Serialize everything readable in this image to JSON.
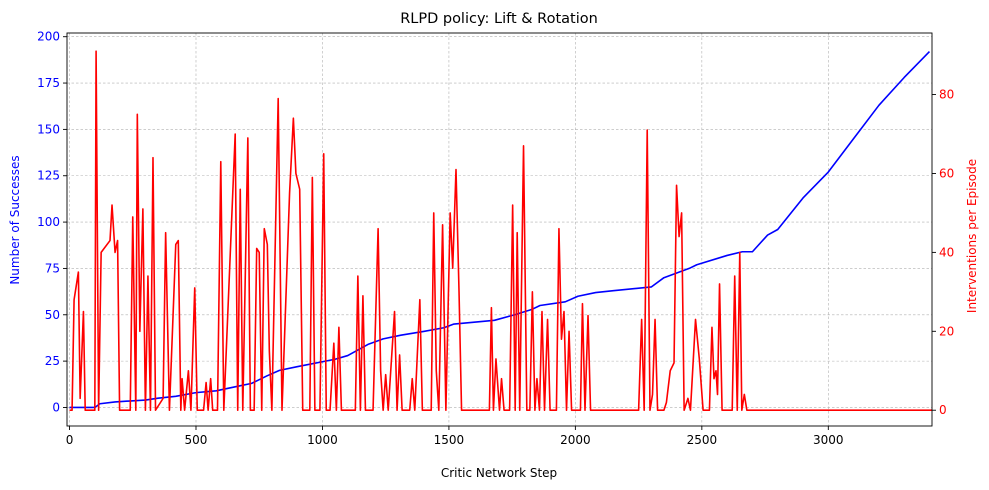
{
  "chart_data": {
    "type": "line",
    "title": "RLPD policy: Lift & Rotation",
    "xlabel": "Critic Network Step",
    "ylabel_left": "Number of Successes",
    "ylabel_right": "Interventions per Episode",
    "xlim": [
      -10,
      3410
    ],
    "ylim_left": [
      -10,
      202
    ],
    "ylim_right": [
      -4,
      95.6
    ],
    "x_ticks": [
      0,
      500,
      1000,
      1500,
      2000,
      2500,
      3000
    ],
    "y_ticks_left": [
      0,
      25,
      50,
      75,
      100,
      125,
      150,
      175,
      200
    ],
    "y_ticks_right": [
      0,
      20,
      40,
      60,
      80
    ],
    "grid": true,
    "colors": {
      "successes": "#0000ff",
      "interventions": "#ff0000",
      "left_axis_text": "#0000ff",
      "right_axis_text": "#ff0000",
      "grid": "#b0b0b0"
    },
    "series": [
      {
        "axis": "left",
        "color": "#0000ff",
        "points": [
          [
            0,
            0
          ],
          [
            100,
            0
          ],
          [
            120,
            2
          ],
          [
            180,
            3
          ],
          [
            300,
            4
          ],
          [
            350,
            5
          ],
          [
            420,
            6
          ],
          [
            500,
            8
          ],
          [
            580,
            9
          ],
          [
            650,
            11
          ],
          [
            720,
            13
          ],
          [
            780,
            17
          ],
          [
            830,
            20
          ],
          [
            900,
            22
          ],
          [
            1050,
            26
          ],
          [
            1100,
            28
          ],
          [
            1180,
            34
          ],
          [
            1240,
            37
          ],
          [
            1310,
            39
          ],
          [
            1400,
            41
          ],
          [
            1480,
            43
          ],
          [
            1520,
            45
          ],
          [
            1680,
            47
          ],
          [
            1760,
            50
          ],
          [
            1830,
            53
          ],
          [
            1860,
            55
          ],
          [
            1960,
            57
          ],
          [
            2010,
            60
          ],
          [
            2080,
            62
          ],
          [
            2150,
            63
          ],
          [
            2300,
            65
          ],
          [
            2350,
            70
          ],
          [
            2450,
            75
          ],
          [
            2480,
            77
          ],
          [
            2600,
            82
          ],
          [
            2660,
            84
          ],
          [
            2700,
            84
          ],
          [
            2760,
            93
          ],
          [
            2800,
            96
          ],
          [
            2900,
            113
          ],
          [
            3000,
            127
          ],
          [
            3100,
            145
          ],
          [
            3200,
            163
          ],
          [
            3300,
            178
          ],
          [
            3400,
            192
          ]
        ]
      },
      {
        "axis": "right",
        "color": "#ff0000",
        "points": [
          [
            0,
            0
          ],
          [
            10,
            0
          ],
          [
            18,
            28
          ],
          [
            35,
            35
          ],
          [
            42,
            3
          ],
          [
            55,
            25
          ],
          [
            62,
            0
          ],
          [
            100,
            0
          ],
          [
            105,
            91
          ],
          [
            115,
            0
          ],
          [
            125,
            40
          ],
          [
            160,
            43
          ],
          [
            168,
            52
          ],
          [
            180,
            40
          ],
          [
            190,
            43
          ],
          [
            198,
            0
          ],
          [
            240,
            0
          ],
          [
            250,
            49
          ],
          [
            262,
            0
          ],
          [
            268,
            75
          ],
          [
            278,
            20
          ],
          [
            290,
            51
          ],
          [
            300,
            0
          ],
          [
            310,
            34
          ],
          [
            320,
            0
          ],
          [
            330,
            64
          ],
          [
            340,
            0
          ],
          [
            370,
            3
          ],
          [
            380,
            45
          ],
          [
            395,
            0
          ],
          [
            420,
            42
          ],
          [
            430,
            43
          ],
          [
            440,
            0
          ],
          [
            445,
            8
          ],
          [
            455,
            0
          ],
          [
            470,
            10
          ],
          [
            480,
            0
          ],
          [
            495,
            31
          ],
          [
            505,
            0
          ],
          [
            530,
            0
          ],
          [
            540,
            7
          ],
          [
            548,
            0
          ],
          [
            558,
            8
          ],
          [
            566,
            0
          ],
          [
            585,
            0
          ],
          [
            598,
            63
          ],
          [
            610,
            0
          ],
          [
            655,
            70
          ],
          [
            665,
            0
          ],
          [
            675,
            56
          ],
          [
            685,
            0
          ],
          [
            705,
            69
          ],
          [
            715,
            0
          ],
          [
            730,
            0
          ],
          [
            740,
            41
          ],
          [
            750,
            40
          ],
          [
            760,
            0
          ],
          [
            770,
            46
          ],
          [
            782,
            42
          ],
          [
            790,
            15
          ],
          [
            800,
            0
          ],
          [
            825,
            79
          ],
          [
            840,
            0
          ],
          [
            870,
            55
          ],
          [
            885,
            74
          ],
          [
            895,
            60
          ],
          [
            910,
            56
          ],
          [
            922,
            0
          ],
          [
            950,
            0
          ],
          [
            960,
            59
          ],
          [
            970,
            0
          ],
          [
            990,
            0
          ],
          [
            1005,
            65
          ],
          [
            1015,
            0
          ],
          [
            1030,
            0
          ],
          [
            1045,
            17
          ],
          [
            1055,
            0
          ],
          [
            1065,
            21
          ],
          [
            1075,
            0
          ],
          [
            1130,
            0
          ],
          [
            1140,
            34
          ],
          [
            1150,
            0
          ],
          [
            1160,
            29
          ],
          [
            1170,
            0
          ],
          [
            1200,
            0
          ],
          [
            1220,
            46
          ],
          [
            1230,
            10
          ],
          [
            1240,
            0
          ],
          [
            1250,
            9
          ],
          [
            1260,
            0
          ],
          [
            1285,
            25
          ],
          [
            1295,
            0
          ],
          [
            1305,
            14
          ],
          [
            1315,
            0
          ],
          [
            1345,
            0
          ],
          [
            1355,
            8
          ],
          [
            1365,
            0
          ],
          [
            1385,
            28
          ],
          [
            1395,
            0
          ],
          [
            1430,
            0
          ],
          [
            1440,
            50
          ],
          [
            1450,
            10
          ],
          [
            1460,
            0
          ],
          [
            1475,
            47
          ],
          [
            1488,
            0
          ],
          [
            1505,
            50
          ],
          [
            1515,
            36
          ],
          [
            1528,
            61
          ],
          [
            1540,
            30
          ],
          [
            1550,
            0
          ],
          [
            1660,
            0
          ],
          [
            1668,
            26
          ],
          [
            1676,
            0
          ],
          [
            1686,
            13
          ],
          [
            1700,
            0
          ],
          [
            1708,
            8
          ],
          [
            1718,
            0
          ],
          [
            1740,
            0
          ],
          [
            1752,
            52
          ],
          [
            1762,
            0
          ],
          [
            1770,
            45
          ],
          [
            1780,
            0
          ],
          [
            1795,
            67
          ],
          [
            1808,
            0
          ],
          [
            1820,
            0
          ],
          [
            1830,
            30
          ],
          [
            1840,
            0
          ],
          [
            1848,
            8
          ],
          [
            1858,
            0
          ],
          [
            1868,
            25
          ],
          [
            1878,
            0
          ],
          [
            1890,
            23
          ],
          [
            1900,
            0
          ],
          [
            1925,
            0
          ],
          [
            1935,
            46
          ],
          [
            1945,
            18
          ],
          [
            1955,
            25
          ],
          [
            1965,
            0
          ],
          [
            1975,
            20
          ],
          [
            1985,
            0
          ],
          [
            2020,
            0
          ],
          [
            2028,
            27
          ],
          [
            2038,
            0
          ],
          [
            2050,
            24
          ],
          [
            2060,
            0
          ],
          [
            2250,
            0
          ],
          [
            2262,
            23
          ],
          [
            2272,
            0
          ],
          [
            2284,
            71
          ],
          [
            2295,
            0
          ],
          [
            2305,
            4
          ],
          [
            2315,
            23
          ],
          [
            2325,
            0
          ],
          [
            2350,
            0
          ],
          [
            2360,
            2
          ],
          [
            2375,
            10
          ],
          [
            2390,
            12
          ],
          [
            2400,
            57
          ],
          [
            2410,
            44
          ],
          [
            2420,
            50
          ],
          [
            2430,
            0
          ],
          [
            2445,
            3
          ],
          [
            2455,
            0
          ],
          [
            2475,
            23
          ],
          [
            2490,
            13
          ],
          [
            2505,
            0
          ],
          [
            2530,
            0
          ],
          [
            2540,
            21
          ],
          [
            2548,
            8
          ],
          [
            2556,
            10
          ],
          [
            2562,
            4
          ],
          [
            2570,
            32
          ],
          [
            2580,
            0
          ],
          [
            2620,
            0
          ],
          [
            2630,
            34
          ],
          [
            2640,
            0
          ],
          [
            2650,
            40
          ],
          [
            2658,
            0
          ],
          [
            2668,
            4
          ],
          [
            2678,
            0
          ],
          [
            3410,
            0
          ]
        ]
      }
    ]
  }
}
